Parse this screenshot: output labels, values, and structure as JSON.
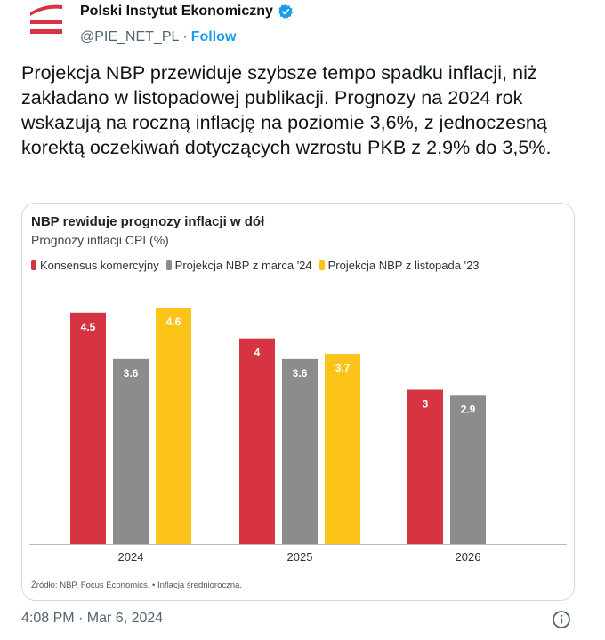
{
  "author": {
    "name": "Polski Instytut Ekonomiczny",
    "handle": "@PIE_NET_PL",
    "separator": "·",
    "follow_label": "Follow"
  },
  "tweet_text": "Projekcja NBP przewiduje szybsze tempo spadku inflacji, niż zakładano w listopadowej publikacji. Prognozy na 2024 rok wskazują na roczną inflację na poziomie 3,6%, z jednoczesną korektą oczekiwań dotyczących wzrostu PKB z 2,9% do 3,5%.",
  "timestamp": "4:08 PM · Mar 6, 2024",
  "colors": {
    "red": "#d63440",
    "gray": "#8c8c8c",
    "yellow": "#fcc419",
    "brand_red": "#d63440",
    "link": "#1d9bf0"
  },
  "icons": {
    "avatar": "pie-logo-icon",
    "verified": "verified-badge-icon",
    "info": "info-icon"
  },
  "chart_data": {
    "type": "bar",
    "title": "NBP rewiduje prognozy inflacji w dół",
    "subtitle": "Prognozy inflacji CPI (%)",
    "categories": [
      "2024",
      "2025",
      "2026"
    ],
    "series": [
      {
        "name": "Konsensus komercyjny",
        "color": "#d63440",
        "values": [
          4.5,
          4,
          3
        ],
        "labels": [
          "4.5",
          "4",
          "3"
        ]
      },
      {
        "name": "Projekcja NBP z marca '24",
        "color": "#8c8c8c",
        "values": [
          3.6,
          3.6,
          2.9
        ],
        "labels": [
          "3.6",
          "3.6",
          "2.9"
        ]
      },
      {
        "name": "Projekcja NBP z listopada '23",
        "color": "#fcc419",
        "values": [
          4.6,
          3.7,
          null
        ],
        "labels": [
          "4.6",
          "3.7",
          ""
        ]
      }
    ],
    "ylim": [
      0,
      4.6
    ],
    "legend_position": "top-left",
    "grid": false,
    "source": "Źródło: NBP, Focus Economics. • Inflacja średnioroczna."
  }
}
